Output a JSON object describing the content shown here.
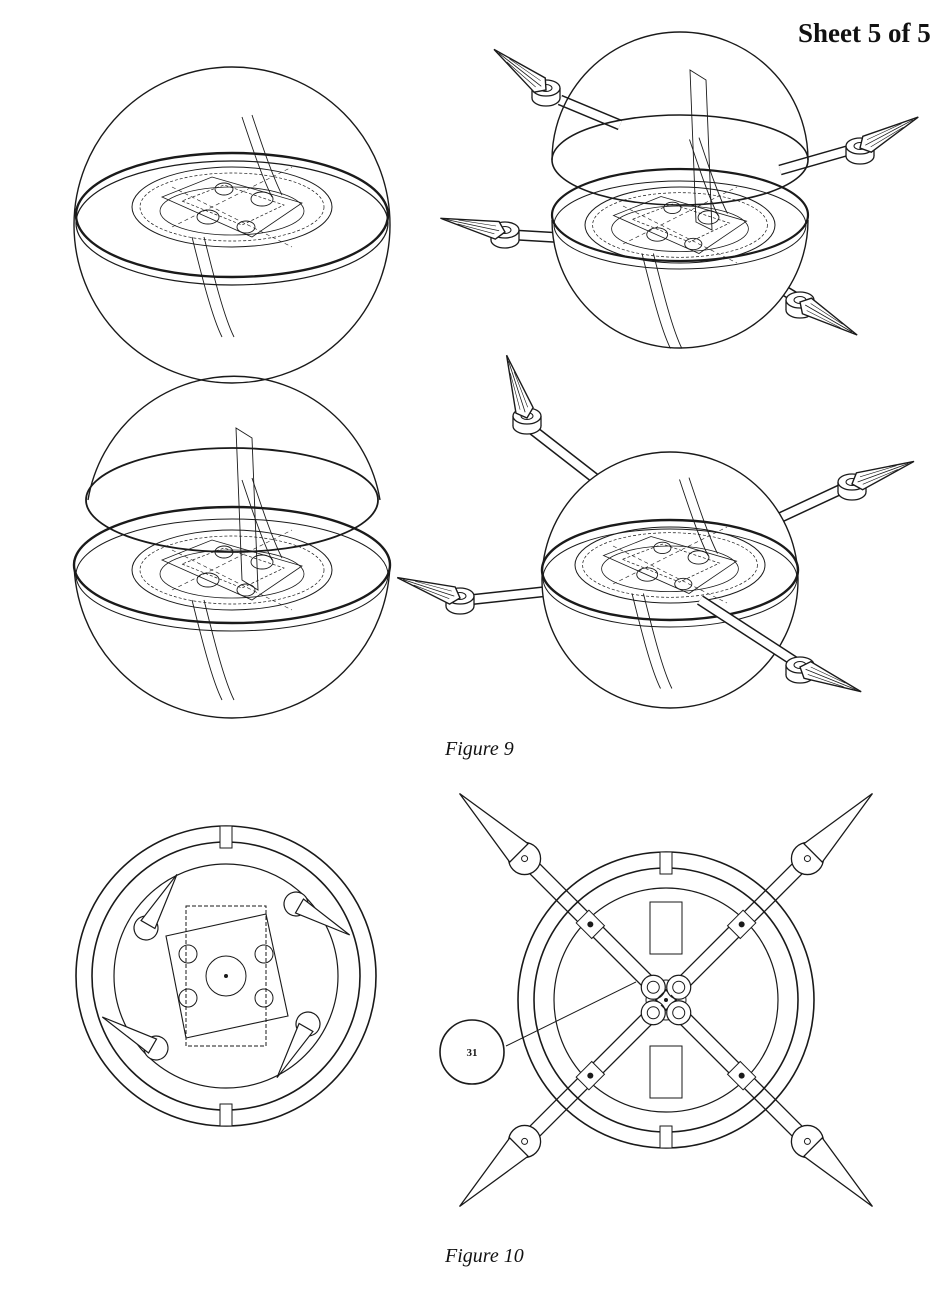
{
  "header": {
    "sheet_label": "Sheet 5 of 5"
  },
  "figures": [
    {
      "id": "fig9",
      "caption": "Figure 9"
    },
    {
      "id": "fig10",
      "caption": "Figure 10"
    }
  ],
  "reference_numerals": [
    {
      "label": "31"
    }
  ],
  "colors": {
    "line": "#1a1a1a",
    "background": "#ffffff"
  }
}
